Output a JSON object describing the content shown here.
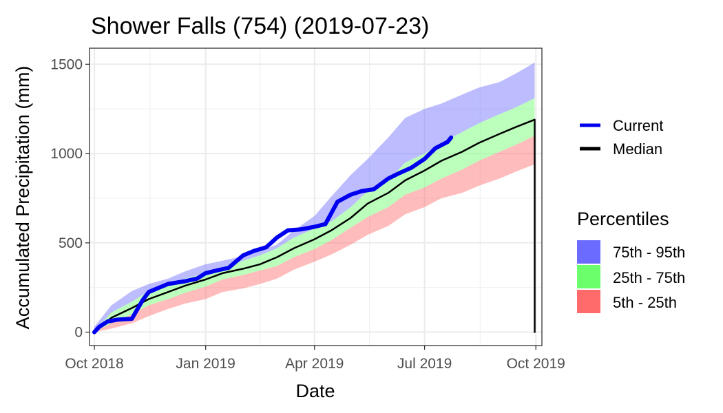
{
  "chart_data": {
    "type": "area",
    "title": "Shower Falls (754) (2019-07-23)",
    "xlabel": "Date",
    "ylabel": "Accumulated Precipitation (mm)",
    "xlim": [
      "2018-09-27",
      "2019-10-06"
    ],
    "ylim": [
      -75,
      1590
    ],
    "x_ticks": [
      {
        "date": "2018-10-01",
        "label": "Oct 2018"
      },
      {
        "date": "2019-01-01",
        "label": "Jan 2019"
      },
      {
        "date": "2019-04-01",
        "label": "Apr 2019"
      },
      {
        "date": "2019-07-01",
        "label": "Jul 2019"
      },
      {
        "date": "2019-10-01",
        "label": "Oct 2019"
      }
    ],
    "y_ticks": [
      0,
      500,
      1000,
      1500
    ],
    "grid": true,
    "legend_position": "right",
    "legend_lines_title": "",
    "legend_bands_title": "Percentiles",
    "band_dates": [
      "2018-10-01",
      "2018-10-15",
      "2018-11-01",
      "2018-11-15",
      "2018-12-01",
      "2018-12-15",
      "2019-01-01",
      "2019-01-15",
      "2019-02-01",
      "2019-02-15",
      "2019-03-01",
      "2019-03-15",
      "2019-04-01",
      "2019-04-15",
      "2019-05-01",
      "2019-05-15",
      "2019-06-01",
      "2019-06-15",
      "2019-07-01",
      "2019-07-15",
      "2019-08-01",
      "2019-08-15",
      "2019-09-01",
      "2019-09-15",
      "2019-09-30"
    ],
    "bands": [
      {
        "label": "75th - 95th",
        "color": "#6b6bff",
        "opacity": 0.45,
        "lower": [
          5,
          110,
          170,
          230,
          260,
          300,
          330,
          365,
          400,
          430,
          470,
          530,
          580,
          620,
          700,
          790,
          850,
          950,
          1000,
          1060,
          1120,
          1170,
          1220,
          1260,
          1310
        ],
        "upper": [
          30,
          150,
          230,
          270,
          300,
          340,
          380,
          400,
          425,
          455,
          490,
          570,
          650,
          760,
          880,
          970,
          1090,
          1200,
          1250,
          1280,
          1330,
          1370,
          1400,
          1450,
          1510
        ]
      },
      {
        "label": "25th - 75th",
        "color": "#6bff6b",
        "opacity": 0.45,
        "lower": [
          0,
          50,
          100,
          150,
          185,
          220,
          255,
          295,
          320,
          345,
          370,
          420,
          465,
          515,
          585,
          645,
          700,
          770,
          810,
          860,
          910,
          960,
          1010,
          1050,
          1100
        ],
        "upper": [
          5,
          110,
          170,
          230,
          260,
          300,
          330,
          365,
          400,
          430,
          470,
          530,
          580,
          620,
          700,
          790,
          850,
          950,
          1000,
          1060,
          1120,
          1170,
          1220,
          1260,
          1310
        ]
      },
      {
        "label": "5th - 25th",
        "color": "#ff6b6b",
        "opacity": 0.45,
        "lower": [
          0,
          20,
          50,
          90,
          130,
          160,
          185,
          225,
          245,
          270,
          300,
          350,
          395,
          435,
          490,
          545,
          595,
          660,
          700,
          750,
          780,
          820,
          860,
          900,
          940
        ],
        "upper": [
          0,
          50,
          100,
          150,
          185,
          220,
          255,
          295,
          320,
          345,
          370,
          420,
          465,
          515,
          585,
          645,
          700,
          770,
          810,
          860,
          910,
          960,
          1010,
          1050,
          1100
        ]
      }
    ],
    "series": [
      {
        "name": "Current",
        "color": "#0000ee",
        "width": 6,
        "x": [
          "2018-10-01",
          "2018-10-05",
          "2018-10-12",
          "2018-10-20",
          "2018-11-01",
          "2018-11-10",
          "2018-11-15",
          "2018-11-22",
          "2018-12-01",
          "2018-12-15",
          "2018-12-25",
          "2019-01-01",
          "2019-01-10",
          "2019-01-20",
          "2019-02-01",
          "2019-02-10",
          "2019-02-20",
          "2019-03-01",
          "2019-03-10",
          "2019-03-20",
          "2019-04-01",
          "2019-04-10",
          "2019-04-20",
          "2019-05-01",
          "2019-05-10",
          "2019-05-20",
          "2019-06-01",
          "2019-06-10",
          "2019-06-20",
          "2019-07-01",
          "2019-07-10",
          "2019-07-20",
          "2019-07-23"
        ],
        "y": [
          0,
          30,
          60,
          70,
          75,
          180,
          225,
          245,
          270,
          285,
          300,
          330,
          345,
          360,
          430,
          455,
          475,
          530,
          570,
          575,
          590,
          605,
          730,
          770,
          790,
          800,
          860,
          890,
          920,
          970,
          1030,
          1065,
          1090
        ]
      },
      {
        "name": "Median",
        "color": "#000000",
        "width": 2.5,
        "x": [
          "2018-10-01",
          "2018-10-15",
          "2018-11-01",
          "2018-11-15",
          "2018-12-01",
          "2018-12-15",
          "2019-01-01",
          "2019-01-15",
          "2019-02-01",
          "2019-02-15",
          "2019-03-01",
          "2019-03-15",
          "2019-04-01",
          "2019-04-15",
          "2019-05-01",
          "2019-05-15",
          "2019-06-01",
          "2019-06-15",
          "2019-07-01",
          "2019-07-15",
          "2019-08-01",
          "2019-08-15",
          "2019-09-01",
          "2019-09-15",
          "2019-09-30",
          "2019-09-30"
        ],
        "y": [
          0,
          80,
          135,
          185,
          225,
          260,
          295,
          330,
          355,
          380,
          420,
          470,
          520,
          570,
          640,
          720,
          780,
          850,
          905,
          960,
          1010,
          1060,
          1110,
          1150,
          1190,
          0
        ]
      }
    ]
  }
}
